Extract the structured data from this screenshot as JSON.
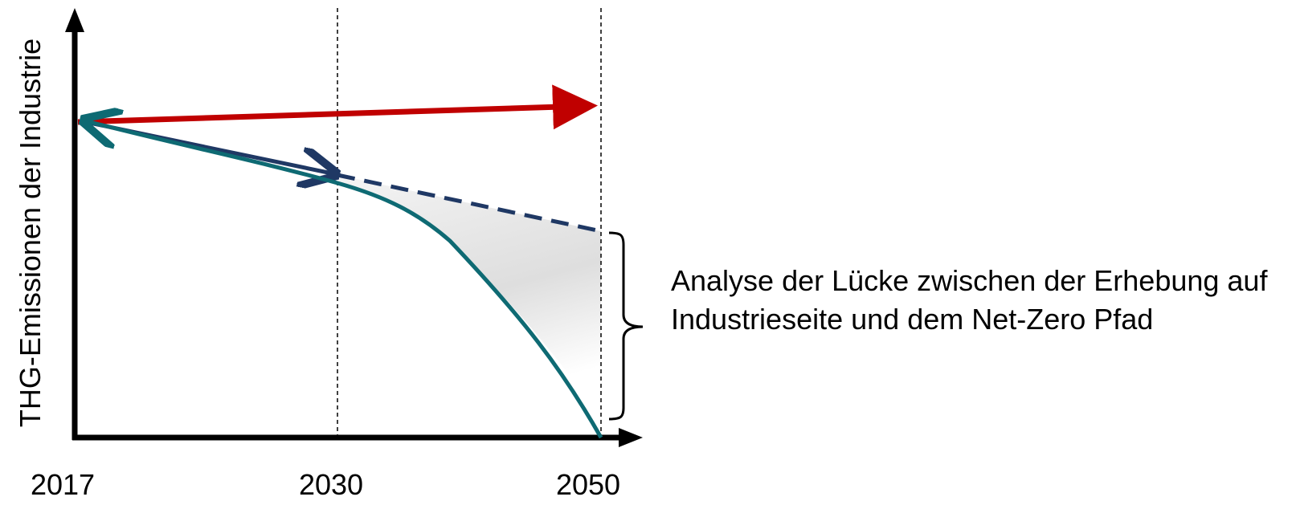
{
  "y_axis_label": "THG-Emissionen der Industrie",
  "x_labels": [
    "2017",
    "2030",
    "2050"
  ],
  "annotation": [
    "Analyse der Lücke zwischen der Erhebung auf",
    "Industrieseite und dem Net-Zero Pfad"
  ]
}
